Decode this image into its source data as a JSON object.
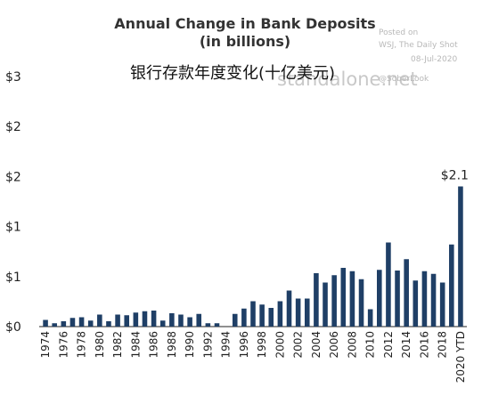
{
  "chart_data": {
    "type": "bar",
    "title": "Annual Change in Bank Deposits",
    "subtitle": "(in billions)",
    "overlay_caption": "银行存款年度变化(十亿美元)",
    "source_lines": [
      "Posted on",
      "WSJ, The Daily Shot",
      "08-Jul-2020"
    ],
    "handle": "@SoberLook",
    "watermark": "standalone.net",
    "bar_color": "#1f3f66",
    "ylim": [
      0,
      3.8
    ],
    "yticks": [
      {
        "value": 0,
        "label": "$0"
      },
      {
        "value": 0.75,
        "label": "$1"
      },
      {
        "value": 1.5,
        "label": "$1"
      },
      {
        "value": 2.25,
        "label": "$2"
      },
      {
        "value": 3.0,
        "label": "$2"
      },
      {
        "value": 3.75,
        "label": "$3"
      }
    ],
    "xtick_labels": [
      "1974",
      "1976",
      "1978",
      "1980",
      "1982",
      "1984",
      "1986",
      "1988",
      "1990",
      "1992",
      "1994",
      "1996",
      "1998",
      "2000",
      "2002",
      "2004",
      "2006",
      "2008",
      "2010",
      "2012",
      "2014",
      "2016",
      "2018",
      "2020 YTD"
    ],
    "categories": [
      "1974",
      "1975",
      "1976",
      "1977",
      "1978",
      "1979",
      "1980",
      "1981",
      "1982",
      "1983",
      "1984",
      "1985",
      "1986",
      "1987",
      "1988",
      "1989",
      "1990",
      "1991",
      "1992",
      "1993",
      "1994",
      "1995",
      "1996",
      "1997",
      "1998",
      "1999",
      "2000",
      "2001",
      "2002",
      "2003",
      "2004",
      "2005",
      "2006",
      "2007",
      "2008",
      "2009",
      "2010",
      "2011",
      "2012",
      "2013",
      "2014",
      "2015",
      "2016",
      "2017",
      "2018",
      "2019",
      "2020 YTD"
    ],
    "values": [
      0.1,
      0.05,
      0.08,
      0.13,
      0.14,
      0.09,
      0.18,
      0.08,
      0.18,
      0.17,
      0.21,
      0.23,
      0.24,
      0.09,
      0.2,
      0.18,
      0.14,
      0.19,
      0.05,
      0.05,
      0,
      0.19,
      0.27,
      0.38,
      0.33,
      0.28,
      0.38,
      0.54,
      0.42,
      0.42,
      0.8,
      0.66,
      0.77,
      0.88,
      0.83,
      0.71,
      0.26,
      0.85,
      1.26,
      0.84,
      1.01,
      0.69,
      0.83,
      0.79,
      0.66,
      1.23,
      2.1
    ],
    "data_labels": [
      {
        "category": "2020 YTD",
        "label": "$2.1"
      }
    ]
  }
}
